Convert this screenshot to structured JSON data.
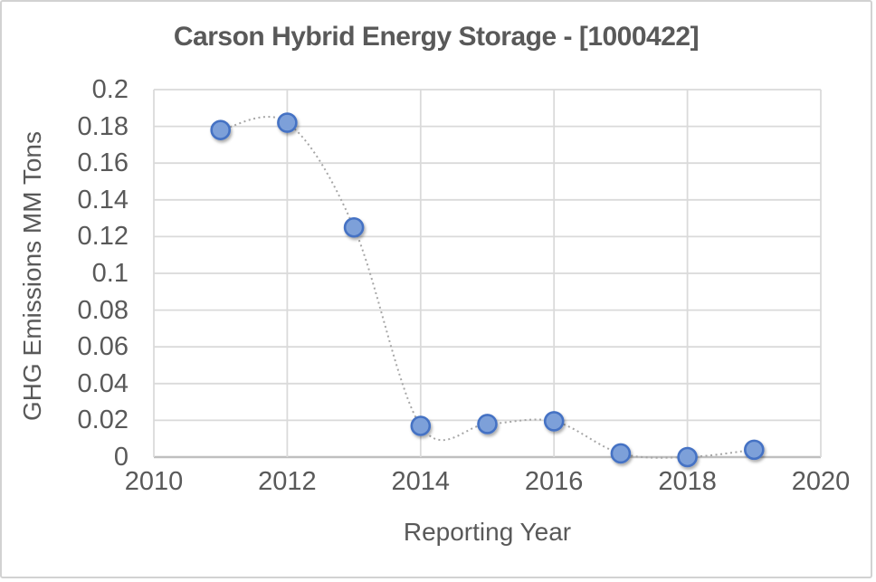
{
  "chart_data": {
    "type": "scatter",
    "title": "Carson Hybrid Energy Storage - [1000422]",
    "xlabel": "Reporting Year",
    "ylabel": "GHG Emissions MM Tons",
    "x": [
      2011,
      2012,
      2013,
      2014,
      2015,
      2016,
      2017,
      2018,
      2019
    ],
    "y": [
      0.178,
      0.182,
      0.125,
      0.017,
      0.018,
      0.0195,
      0.002,
      0.0,
      0.004
    ],
    "series_name": "GHG Emissions",
    "xlim": [
      2010,
      2020
    ],
    "ylim": [
      0,
      0.2
    ],
    "x_ticks": [
      2010,
      2012,
      2014,
      2016,
      2018,
      2020
    ],
    "x_tick_labels": [
      "2010",
      "2012",
      "2014",
      "2016",
      "2018",
      "2020"
    ],
    "y_ticks": [
      0,
      0.02,
      0.04,
      0.06,
      0.08,
      0.1,
      0.12,
      0.14,
      0.16,
      0.18,
      0.2
    ],
    "y_tick_labels": [
      "0",
      "0.02",
      "0.04",
      "0.06",
      "0.08",
      "0.1",
      "0.12",
      "0.14",
      "0.16",
      "0.18",
      "0.2"
    ],
    "grid": true,
    "legend": false,
    "line_style": "dotted-smooth",
    "colors": {
      "marker_fill": "#7da0d9",
      "marker_border": "#4472c4",
      "line": "#a6a6a6",
      "gridline": "#dadada",
      "axis_line": "#bfbfbf",
      "text": "#595959"
    }
  }
}
